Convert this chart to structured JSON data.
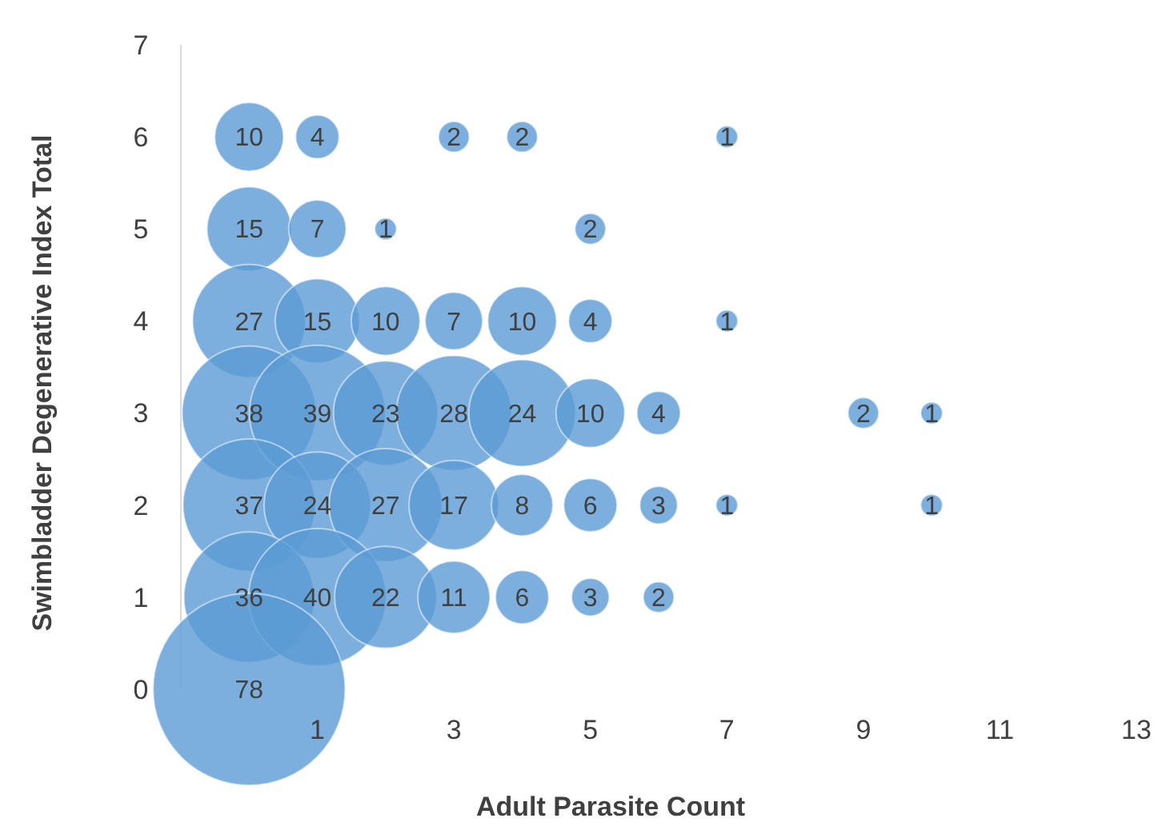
{
  "chart_data": {
    "type": "bubble",
    "xlabel": "Adult Parasite Count",
    "ylabel": "Swimbladder Degenerative Index Total",
    "xlim": [
      -1,
      13
    ],
    "xticks": [
      1,
      3,
      5,
      7,
      9,
      11,
      13
    ],
    "ylim": [
      0,
      7
    ],
    "yticks": [
      0,
      1,
      2,
      3,
      4,
      5,
      6,
      7
    ],
    "grid": false,
    "series": [
      {
        "color": "#5b9bd5",
        "x": [
          0,
          1,
          3,
          4,
          7,
          0,
          1,
          2,
          5,
          0,
          1,
          2,
          3,
          4,
          5,
          7,
          0,
          1,
          2,
          3,
          4,
          5,
          6,
          9,
          10,
          0,
          1,
          2,
          3,
          4,
          5,
          6,
          7,
          10,
          0,
          1,
          2,
          3,
          4,
          5,
          6,
          0
        ],
        "values": [
          6,
          6,
          6,
          6,
          6,
          5,
          5,
          5,
          5,
          4,
          4,
          4,
          4,
          4,
          4,
          4,
          3,
          3,
          3,
          3,
          3,
          3,
          3,
          3,
          3,
          2,
          2,
          2,
          2,
          2,
          2,
          2,
          2,
          2,
          1,
          1,
          1,
          1,
          1,
          1,
          1,
          0
        ],
        "sizes": [
          10,
          4,
          2,
          2,
          1,
          15,
          7,
          1,
          2,
          27,
          15,
          10,
          7,
          10,
          4,
          1,
          38,
          39,
          23,
          28,
          24,
          10,
          4,
          2,
          1,
          37,
          24,
          27,
          17,
          8,
          6,
          3,
          1,
          1,
          36,
          40,
          22,
          11,
          6,
          3,
          2,
          78
        ],
        "value_labels": [
          "10",
          "4",
          "2",
          "2",
          "1",
          "15",
          "7",
          "1",
          "2",
          "27",
          "15",
          "10",
          "7",
          "10",
          "4",
          "1",
          "38",
          "39",
          "23",
          "28",
          "24",
          "10",
          "4",
          "2",
          "1",
          "37",
          "24",
          "27",
          "17",
          "8",
          "6",
          "3",
          "1",
          "1",
          "36",
          "40",
          "22",
          "11",
          "6",
          "3",
          "2",
          "78"
        ]
      }
    ]
  }
}
